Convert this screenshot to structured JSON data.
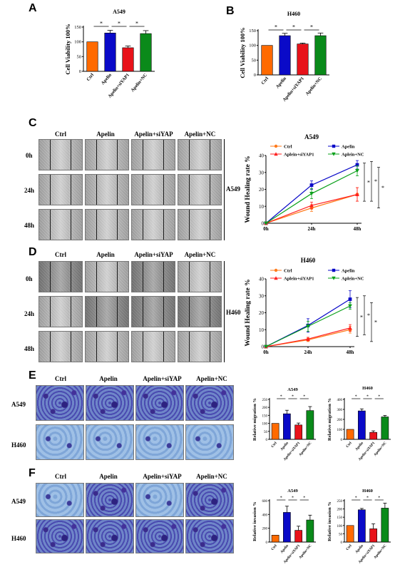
{
  "panels": {
    "A": {
      "letter": "A",
      "title": "A549",
      "ylabel": "Cell Viability 100%"
    },
    "B": {
      "letter": "B",
      "title": "H460",
      "ylabel": "Cell Viability 100%"
    },
    "C": {
      "letter": "C",
      "title": "A549",
      "ylabel": "Wound Healing rate %",
      "side_label": "A549",
      "cols": [
        "Ctrl",
        "Apelin",
        "Apelin+siYAP",
        "Apelin+NC"
      ],
      "rows": [
        "0h",
        "24h",
        "48h"
      ]
    },
    "D": {
      "letter": "D",
      "title": "H460",
      "ylabel": "Wound Healing rate %",
      "side_label": "H460",
      "cols": [
        "Ctrl",
        "Apelin",
        "Apelin+siYAP",
        "Apelin+NC"
      ],
      "rows": [
        "0h",
        "24h",
        "48h"
      ]
    },
    "E": {
      "letter": "E",
      "cols": [
        "Ctrl",
        "Apelin",
        "Apelin+siYAP",
        "Apelin+NC"
      ],
      "rows": [
        "A549",
        "H460"
      ],
      "t1": "A549",
      "t2": "H460",
      "ylabel": "Relative migration %"
    },
    "F": {
      "letter": "F",
      "cols": [
        "Ctrl",
        "Apelin",
        "Apelin+siYAP",
        "Apelin+NC"
      ],
      "rows": [
        "A549",
        "H460"
      ],
      "t1": "A549",
      "t2": "H460",
      "ylabel": "Relative invasion %"
    }
  },
  "sig_mark": "*",
  "colors": {
    "ctrl": "#ff6a00",
    "apelin": "#0a0ac8",
    "siyap": "#e8121a",
    "nc": "#0a8a1a",
    "nc_line": "#0aa01a",
    "line_ctrl": "#ff7a1a",
    "line_siyap": "#ff2020"
  },
  "chart_data": [
    {
      "id": "A",
      "type": "bar",
      "title": "A549",
      "ylabel": "Cell Viability 100%",
      "categories": [
        "Ctrl",
        "Apelin",
        "Apelin+siYAP1",
        "Apelin+NC"
      ],
      "values": [
        100,
        130,
        80,
        128
      ],
      "errors": [
        0,
        9,
        6,
        10
      ],
      "ylim": [
        0,
        150
      ],
      "yticks": [
        0,
        50,
        100,
        150
      ]
    },
    {
      "id": "B",
      "type": "bar",
      "title": "H460",
      "ylabel": "Cell Viability 100%",
      "categories": [
        "Ctrl",
        "Apelin",
        "Apelin+siYAP1",
        "Apelin+NC"
      ],
      "values": [
        100,
        133,
        105,
        133
      ],
      "errors": [
        0,
        8,
        3,
        9
      ],
      "ylim": [
        0,
        150
      ],
      "yticks": [
        0,
        50,
        100,
        150
      ]
    },
    {
      "id": "C",
      "type": "line",
      "title": "A549",
      "ylabel": "Wound Healing rate %",
      "x": [
        "0h",
        "24h",
        "48h"
      ],
      "ylim": [
        0,
        40
      ],
      "yticks": [
        0,
        10,
        20,
        30,
        40
      ],
      "series": [
        {
          "name": "Ctrl",
          "values": [
            0,
            9,
            17
          ],
          "errors": [
            0,
            2,
            4
          ],
          "marker": "circle"
        },
        {
          "name": "Apelin",
          "values": [
            0,
            22.5,
            34.5
          ],
          "errors": [
            0,
            2.5,
            2.5
          ],
          "marker": "square"
        },
        {
          "name": "Aplein+siYAP1",
          "values": [
            0,
            10.5,
            17
          ],
          "errors": [
            0,
            2,
            4
          ],
          "marker": "triangle-up"
        },
        {
          "name": "Aplein+NC",
          "values": [
            0,
            17.5,
            31
          ],
          "errors": [
            0,
            3,
            3
          ],
          "marker": "triangle-down"
        }
      ]
    },
    {
      "id": "D",
      "type": "line",
      "title": "H460",
      "ylabel": "Wound Healing rate %",
      "x": [
        "0h",
        "24h",
        "48h"
      ],
      "ylim": [
        0,
        40
      ],
      "yticks": [
        0,
        10,
        20,
        30,
        40
      ],
      "series": [
        {
          "name": "Ctrl",
          "values": [
            0,
            4,
            10
          ],
          "errors": [
            0,
            1,
            2
          ],
          "marker": "circle"
        },
        {
          "name": "Apelin",
          "values": [
            0,
            12.5,
            28
          ],
          "errors": [
            0,
            4,
            5
          ],
          "marker": "square"
        },
        {
          "name": "Aplein+siYAP1",
          "values": [
            0,
            4.5,
            11
          ],
          "errors": [
            0,
            1,
            2
          ],
          "marker": "triangle-up"
        },
        {
          "name": "Aplein+NC",
          "values": [
            0,
            12,
            24
          ],
          "errors": [
            0,
            3,
            2
          ],
          "marker": "triangle-down"
        }
      ]
    },
    {
      "id": "E1",
      "type": "bar",
      "title": "A549",
      "ylabel": "Relative migration %",
      "categories": [
        "Ctrl",
        "Apelin",
        "Apelin+siYAP1",
        "Apelin+NC"
      ],
      "values": [
        100,
        160,
        90,
        180
      ],
      "errors": [
        0,
        22,
        12,
        25
      ],
      "ylim": [
        0,
        250
      ],
      "yticks": [
        0,
        50,
        100,
        150,
        200,
        250
      ]
    },
    {
      "id": "E2",
      "type": "bar",
      "title": "H460",
      "ylabel": "Relative migration %",
      "categories": [
        "Ctrl",
        "Apelin",
        "Apelin+siYAP1",
        "Apelin+NC"
      ],
      "values": [
        100,
        285,
        70,
        225
      ],
      "errors": [
        0,
        20,
        15,
        15
      ],
      "ylim": [
        0,
        400
      ],
      "yticks": [
        0,
        100,
        200,
        300,
        400
      ]
    },
    {
      "id": "F1",
      "type": "bar",
      "title": "A549",
      "ylabel": "Relative invasion %",
      "categories": [
        "Ctrl",
        "Apelin",
        "Apelin+siYAP1",
        "Apelin+NC"
      ],
      "values": [
        100,
        430,
        170,
        320
      ],
      "errors": [
        0,
        90,
        60,
        70
      ],
      "ylim": [
        0,
        600
      ],
      "yticks": [
        0,
        200,
        400,
        600
      ]
    },
    {
      "id": "F2",
      "type": "bar",
      "title": "H460",
      "ylabel": "Relative invasion %",
      "categories": [
        "Ctrl",
        "Apelin",
        "Apelin+siYAP1",
        "Apelin+NC"
      ],
      "values": [
        100,
        195,
        80,
        205
      ],
      "errors": [
        0,
        8,
        30,
        30
      ],
      "ylim": [
        0,
        250
      ],
      "yticks": [
        0,
        50,
        100,
        150,
        200,
        250
      ]
    }
  ]
}
